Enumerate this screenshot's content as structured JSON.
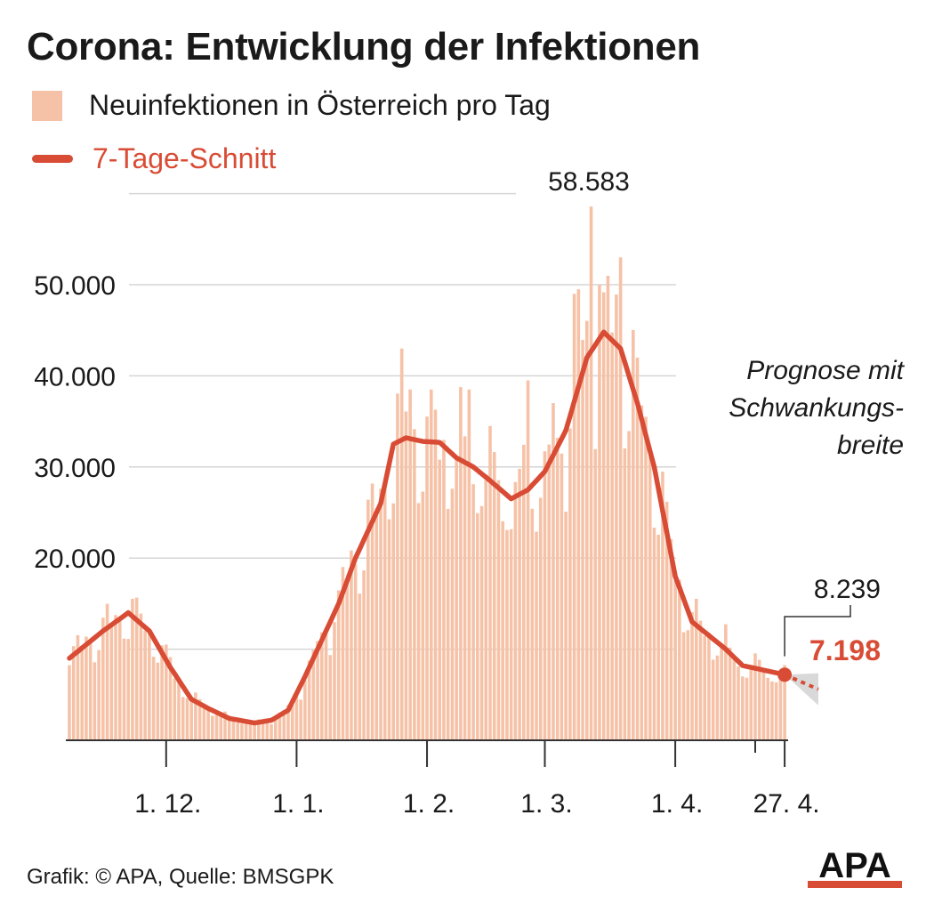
{
  "title": "Corona: Entwicklung der Infektionen",
  "legend": {
    "bars_label": "Neuinfektionen in Österreich pro Tag",
    "line_label": "7-Tage-Schnitt"
  },
  "colors": {
    "bars": "#f6c2a7",
    "line": "#d84c35",
    "grid": "#d6d6d6",
    "axis": "#333333",
    "band": "#d9d9d9"
  },
  "annotations": {
    "peak_label": "58.583",
    "last_value_label": "8.239",
    "avg_value_label": "7.198",
    "prognosis_lines": [
      "Prognose mit",
      "Schwankungs-",
      "breite"
    ]
  },
  "footer": {
    "source": "Grafik: © APA, Quelle: BMSGPK",
    "logo": "APA"
  },
  "chart_data": {
    "type": "bar",
    "ylim": [
      0,
      60000
    ],
    "y_ticks": [
      {
        "value": 20000,
        "label": "20.000"
      },
      {
        "value": 30000,
        "label": "30.000"
      },
      {
        "value": 40000,
        "label": "40.000"
      },
      {
        "value": 50000,
        "label": "50.000"
      }
    ],
    "x_ticks": [
      {
        "day": 23,
        "label": "1. 12."
      },
      {
        "day": 54,
        "label": "1. 1."
      },
      {
        "day": 85,
        "label": "1. 2."
      },
      {
        "day": 113,
        "label": "1. 3."
      },
      {
        "day": 144,
        "label": "1. 4."
      },
      {
        "day": 170,
        "label": "27. 4."
      }
    ],
    "grid": true,
    "avg_anchors": [
      [
        0,
        9000
      ],
      [
        8,
        12000
      ],
      [
        14,
        14000
      ],
      [
        19,
        12000
      ],
      [
        24,
        8000
      ],
      [
        29,
        4500
      ],
      [
        33,
        3500
      ],
      [
        38,
        2400
      ],
      [
        44,
        1900
      ],
      [
        48,
        2200
      ],
      [
        52,
        3300
      ],
      [
        56,
        7000
      ],
      [
        60,
        11000
      ],
      [
        64,
        15000
      ],
      [
        68,
        20000
      ],
      [
        74,
        26000
      ],
      [
        77,
        32500
      ],
      [
        80,
        33200
      ],
      [
        84,
        32800
      ],
      [
        88,
        32700
      ],
      [
        92,
        31000
      ],
      [
        96,
        30000
      ],
      [
        100,
        28500
      ],
      [
        105,
        26500
      ],
      [
        109,
        27500
      ],
      [
        113,
        29500
      ],
      [
        118,
        34000
      ],
      [
        123,
        42000
      ],
      [
        127,
        44800
      ],
      [
        131,
        43000
      ],
      [
        135,
        37000
      ],
      [
        139,
        30000
      ],
      [
        144,
        18000
      ],
      [
        148,
        13000
      ],
      [
        152,
        11500
      ],
      [
        156,
        10000
      ],
      [
        160,
        8200
      ],
      [
        164,
        7800
      ],
      [
        168,
        7400
      ],
      [
        170,
        7198
      ]
    ],
    "highlights": [
      {
        "day": 79,
        "value": 43000
      },
      {
        "day": 81,
        "value": 38500
      },
      {
        "day": 86,
        "value": 38500
      },
      {
        "day": 95,
        "value": 38500
      },
      {
        "day": 109,
        "value": 39500
      },
      {
        "day": 120,
        "value": 49000
      },
      {
        "day": 121,
        "value": 49500
      },
      {
        "day": 124,
        "value": 58583
      },
      {
        "day": 126,
        "value": 50000
      },
      {
        "day": 131,
        "value": 53000
      },
      {
        "day": 135,
        "value": 42000
      },
      {
        "day": 170,
        "value": 8239
      }
    ],
    "projection_end": {
      "day": 178,
      "value": 5600
    },
    "peak": {
      "day": 124,
      "value": 58583
    },
    "last": {
      "day": 170,
      "raw": 8239,
      "avg": 7198
    }
  }
}
